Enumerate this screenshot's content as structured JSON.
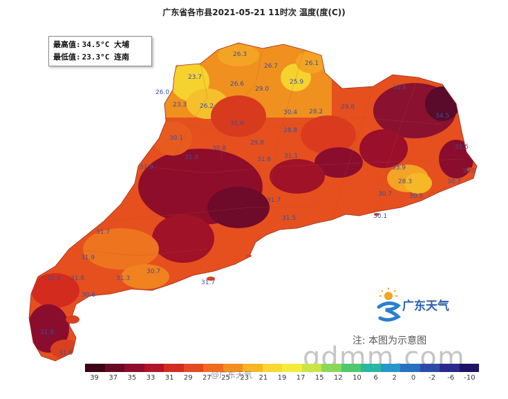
{
  "title": "广东省各市县2021-05-21 11时次 温度(度(C))",
  "minmax": {
    "max_label": "最高值:",
    "max_value": "34.5°C 大埔",
    "min_label": "最低值:",
    "min_value": "23.3°C 连南"
  },
  "temperature_labels": [
    {
      "text": "26.3"
    },
    {
      "text": "26.7"
    },
    {
      "text": "26.1"
    },
    {
      "text": "23.7"
    },
    {
      "text": "26.6"
    },
    {
      "text": "29.0"
    },
    {
      "text": "25.9"
    },
    {
      "text": "26.0"
    },
    {
      "text": "23.3"
    },
    {
      "text": "26.2"
    },
    {
      "text": "30.4"
    },
    {
      "text": "28.2"
    },
    {
      "text": "29.8"
    },
    {
      "text": "30.6"
    },
    {
      "text": "31.6"
    },
    {
      "text": "28.8"
    },
    {
      "text": "30.1"
    },
    {
      "text": "29.8"
    },
    {
      "text": "30.8"
    },
    {
      "text": "31.9"
    },
    {
      "text": "31.6"
    },
    {
      "text": "31.1"
    },
    {
      "text": "31.5"
    },
    {
      "text": "31.9"
    },
    {
      "text": "33.9"
    },
    {
      "text": "30.0"
    },
    {
      "text": "28.3"
    },
    {
      "text": "30.7"
    },
    {
      "text": "30.7"
    },
    {
      "text": "30.5"
    },
    {
      "text": "31.7"
    },
    {
      "text": "31.5"
    },
    {
      "text": "30.1"
    },
    {
      "text": "31.7"
    },
    {
      "text": "31.9"
    },
    {
      "text": "31.3"
    },
    {
      "text": "30.7"
    },
    {
      "text": "31.8"
    },
    {
      "text": "30.6"
    },
    {
      "text": "31.6"
    },
    {
      "text": "31.8"
    },
    {
      "text": "31.6"
    },
    {
      "text": "31.7"
    },
    {
      "text": "34.5"
    }
  ],
  "legend": {
    "colors": [
      "#3d0513",
      "#6a0a22",
      "#8e0d2b",
      "#b21327",
      "#d42b1f",
      "#e24a1e",
      "#ee6b1f",
      "#f5901f",
      "#f9b524",
      "#fbd730",
      "#f3ec3c",
      "#c8e648",
      "#8ad858",
      "#4ec86c",
      "#29b7a0",
      "#2597c8",
      "#2a6fc0",
      "#2c4aa8",
      "#2a2a8c",
      "#1d1466"
    ],
    "ticks": [
      "39",
      "37",
      "35",
      "33",
      "31",
      "29",
      "27",
      "25",
      "23",
      "21",
      "19",
      "17",
      "15",
      "12",
      "10",
      "6",
      "2",
      "0",
      "-2",
      "-6",
      "-10"
    ]
  },
  "logo_text": "广东天气",
  "note": "注: 本图为示意图",
  "watermark": "gdmm.com",
  "weibo_mark": "@广东天气"
}
